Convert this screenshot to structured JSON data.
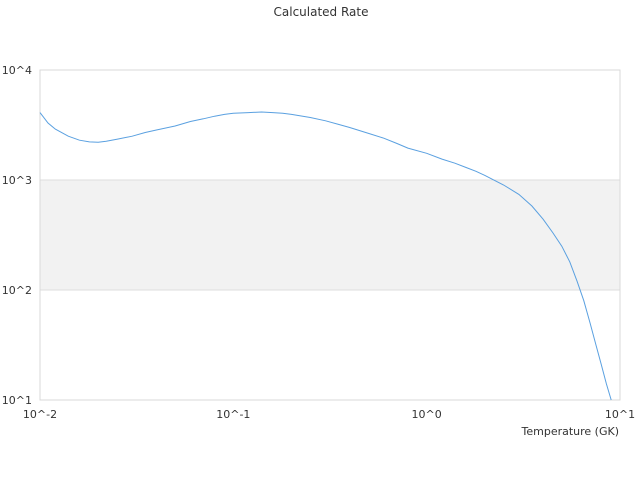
{
  "chart_data": {
    "type": "line",
    "title": "Calculated Rate",
    "xlabel": "Temperature (GK)",
    "ylabel": "",
    "x_scale": "log",
    "y_scale": "log",
    "xlim": [
      0.01,
      10
    ],
    "ylim": [
      10,
      10000
    ],
    "x_tick_labels": [
      "10^-2",
      "10^-1",
      "10^0",
      "10^1"
    ],
    "y_tick_labels": [
      "10^1",
      "10^2",
      "10^3",
      "10^4"
    ],
    "band": {
      "from": 100,
      "to": 1000,
      "color": "#f2f2f2"
    },
    "grid": true,
    "legend": "none",
    "series": [
      {
        "color": "#5aa0e0",
        "x": [
          0.01,
          0.011,
          0.012,
          0.014,
          0.016,
          0.018,
          0.02,
          0.022,
          0.025,
          0.03,
          0.035,
          0.04,
          0.05,
          0.06,
          0.07,
          0.08,
          0.09,
          0.1,
          0.12,
          0.14,
          0.16,
          0.18,
          0.2,
          0.25,
          0.3,
          0.35,
          0.4,
          0.5,
          0.6,
          0.7,
          0.8,
          1.0,
          1.2,
          1.4,
          1.6,
          1.8,
          2.0,
          2.5,
          3.0,
          3.5,
          4.0,
          4.5,
          5.0,
          5.5,
          6.0,
          6.5,
          7.0,
          7.5,
          8.0,
          8.5,
          9.0
        ],
        "y": [
          4100,
          3300,
          2900,
          2500,
          2300,
          2220,
          2200,
          2250,
          2350,
          2500,
          2700,
          2850,
          3100,
          3400,
          3600,
          3800,
          3950,
          4050,
          4100,
          4150,
          4100,
          4050,
          3950,
          3700,
          3450,
          3200,
          3000,
          2650,
          2400,
          2150,
          1950,
          1750,
          1550,
          1420,
          1300,
          1200,
          1100,
          900,
          740,
          580,
          440,
          330,
          250,
          180,
          120,
          80,
          50,
          32,
          21,
          14,
          10
        ]
      }
    ]
  }
}
